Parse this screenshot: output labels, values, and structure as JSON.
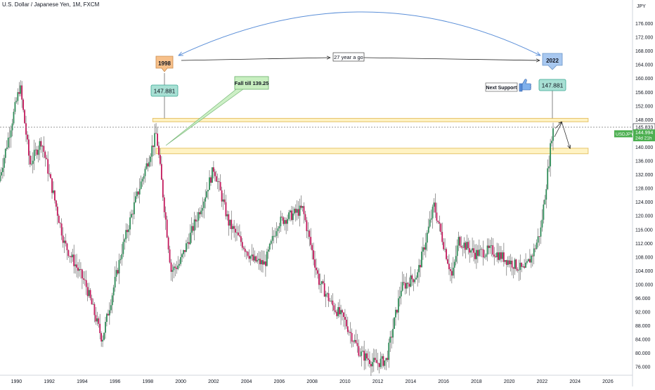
{
  "chart_data": {
    "type": "candlestick",
    "title": "U.S. Dollar / Japanese Yen, 1M, FXCM",
    "symbol": "USDJPY",
    "currency_label": "JPY",
    "ylim": [
      74,
      180
    ],
    "xlim": [
      1989.0,
      2027.5
    ],
    "grid": false,
    "y_ticks": [
      "76.000",
      "80.000",
      "84.000",
      "88.000",
      "92.000",
      "96.000",
      "100.000",
      "104.000",
      "108.000",
      "112.000",
      "116.000",
      "120.000",
      "124.000",
      "128.000",
      "132.000",
      "136.000",
      "140.000",
      "144.000",
      "148.000",
      "152.000",
      "156.000",
      "160.000",
      "164.000",
      "168.000",
      "172.000",
      "176.000"
    ],
    "x_ticks": [
      "1990",
      "1992",
      "1994",
      "1996",
      "1998",
      "2000",
      "2002",
      "2004",
      "2006",
      "2008",
      "2010",
      "2012",
      "2014",
      "2016",
      "2018",
      "2020",
      "2022",
      "2024",
      "2026"
    ],
    "price_labels": {
      "level": "145.833",
      "current_symbol": "USDJPY",
      "current_price": "144.994",
      "countdown": "24d 21h"
    },
    "anchors": [
      {
        "x": 1989.0,
        "y": 130
      },
      {
        "x": 1990.3,
        "y": 158
      },
      {
        "x": 1990.9,
        "y": 135
      },
      {
        "x": 1991.6,
        "y": 142
      },
      {
        "x": 1993.0,
        "y": 112
      },
      {
        "x": 1994.3,
        "y": 100
      },
      {
        "x": 1995.3,
        "y": 84
      },
      {
        "x": 1996.5,
        "y": 110
      },
      {
        "x": 1997.3,
        "y": 124
      },
      {
        "x": 1998.6,
        "y": 144
      },
      {
        "x": 1999.5,
        "y": 104
      },
      {
        "x": 2000.0,
        "y": 106
      },
      {
        "x": 2001.5,
        "y": 125
      },
      {
        "x": 2002.1,
        "y": 134
      },
      {
        "x": 2003.0,
        "y": 118
      },
      {
        "x": 2004.5,
        "y": 107
      },
      {
        "x": 2005.2,
        "y": 106
      },
      {
        "x": 2006.0,
        "y": 118
      },
      {
        "x": 2007.5,
        "y": 122
      },
      {
        "x": 2008.5,
        "y": 101
      },
      {
        "x": 2009.3,
        "y": 94
      },
      {
        "x": 2010.0,
        "y": 90
      },
      {
        "x": 2011.0,
        "y": 80
      },
      {
        "x": 2011.9,
        "y": 77
      },
      {
        "x": 2012.6,
        "y": 78
      },
      {
        "x": 2013.5,
        "y": 99
      },
      {
        "x": 2014.5,
        "y": 103
      },
      {
        "x": 2015.5,
        "y": 123
      },
      {
        "x": 2016.6,
        "y": 102
      },
      {
        "x": 2017.0,
        "y": 113
      },
      {
        "x": 2018.0,
        "y": 109
      },
      {
        "x": 2019.0,
        "y": 110
      },
      {
        "x": 2020.0,
        "y": 107
      },
      {
        "x": 2021.0,
        "y": 104
      },
      {
        "x": 2021.6,
        "y": 110
      },
      {
        "x": 2022.0,
        "y": 116
      },
      {
        "x": 2022.5,
        "y": 136
      },
      {
        "x": 2022.7,
        "y": 145
      }
    ]
  },
  "zones": [
    {
      "name": "resistance",
      "y_top": 148.4,
      "y_bottom": 147.4,
      "x_start": 1998.3,
      "x_end": 2024.8,
      "fill": "#fff3c4",
      "stroke": "#e6c36a"
    },
    {
      "name": "support",
      "y_top": 139.7,
      "y_bottom": 138.1,
      "x_start": 1998.5,
      "x_end": 2024.8,
      "fill": "#fff3c4",
      "stroke": "#e6c36a"
    }
  ],
  "annotations": {
    "label_1998": "1998",
    "label_2022": "2022",
    "price_1998": "147.881",
    "price_2022": "147.881",
    "fall_note": "Fall till 139.25",
    "years_note": "27 year a go",
    "support_note": "Next Support"
  },
  "colors": {
    "up": "#26a69a",
    "down": "#ef5350",
    "candle_up": "#2e8b57",
    "candle_down": "#c2185b",
    "tag_orange": "#f7c08a",
    "tag_blue": "#a8c8f0",
    "tag_teal": "#a8e0d4",
    "fall_box": "#c8efc0",
    "arc": "#5b8fd8",
    "current_price_bg": "#4caf50"
  }
}
